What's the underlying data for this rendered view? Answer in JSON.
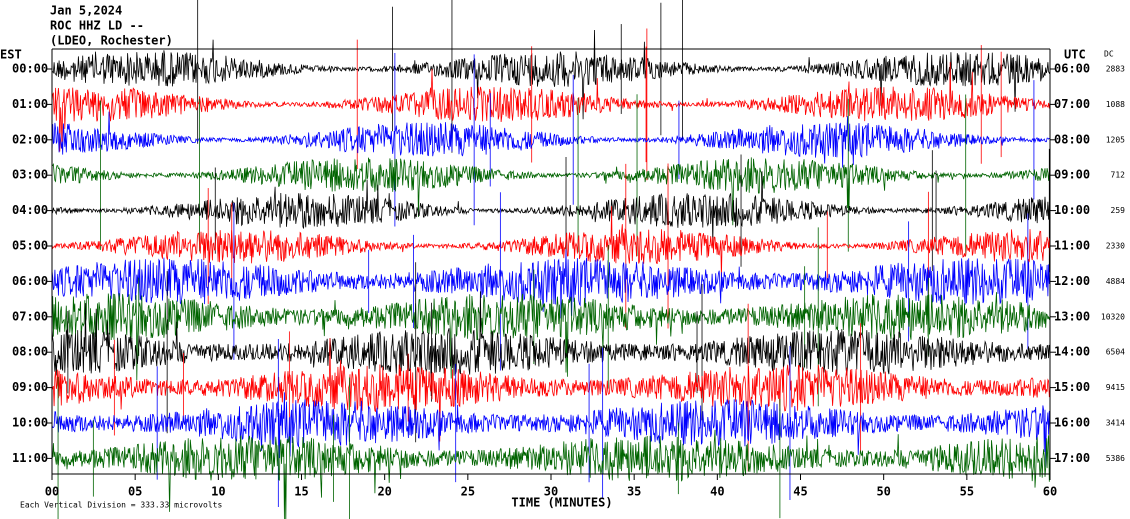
{
  "header": {
    "lines": [
      "Jan 5,2024",
      "ROC HHZ LD --",
      "(LDEO, Rochester)"
    ]
  },
  "left_label": "EST",
  "right_label": "UTC",
  "dc_label": "DC",
  "rows": [
    {
      "est": "00:00",
      "utc": "06:00",
      "dc": "2883",
      "color": "#000000"
    },
    {
      "est": "01:00",
      "utc": "07:00",
      "dc": "1088",
      "color": "#ff0000"
    },
    {
      "est": "02:00",
      "utc": "08:00",
      "dc": "1205",
      "color": "#0000ff"
    },
    {
      "est": "03:00",
      "utc": "09:00",
      "dc": "712",
      "color": "#006400"
    },
    {
      "est": "04:00",
      "utc": "10:00",
      "dc": "259",
      "color": "#000000"
    },
    {
      "est": "05:00",
      "utc": "11:00",
      "dc": "2330",
      "color": "#ff0000"
    },
    {
      "est": "06:00",
      "utc": "12:00",
      "dc": "4884",
      "color": "#0000ff"
    },
    {
      "est": "07:00",
      "utc": "13:00",
      "dc": "10320",
      "color": "#006400"
    },
    {
      "est": "08:00",
      "utc": "14:00",
      "dc": "6504",
      "color": "#000000"
    },
    {
      "est": "09:00",
      "utc": "15:00",
      "dc": "9415",
      "color": "#ff0000"
    },
    {
      "est": "10:00",
      "utc": "16:00",
      "dc": "3414",
      "color": "#0000ff"
    },
    {
      "est": "11:00",
      "utc": "17:00",
      "dc": "5386",
      "color": "#006400"
    }
  ],
  "x_axis": {
    "label": "TIME (MINUTES)",
    "ticks": [
      "00",
      "05",
      "10",
      "15",
      "20",
      "25",
      "30",
      "35",
      "40",
      "45",
      "50",
      "55",
      "60"
    ]
  },
  "footer": "Each Vertical Division = 333.33 microvolts"
}
